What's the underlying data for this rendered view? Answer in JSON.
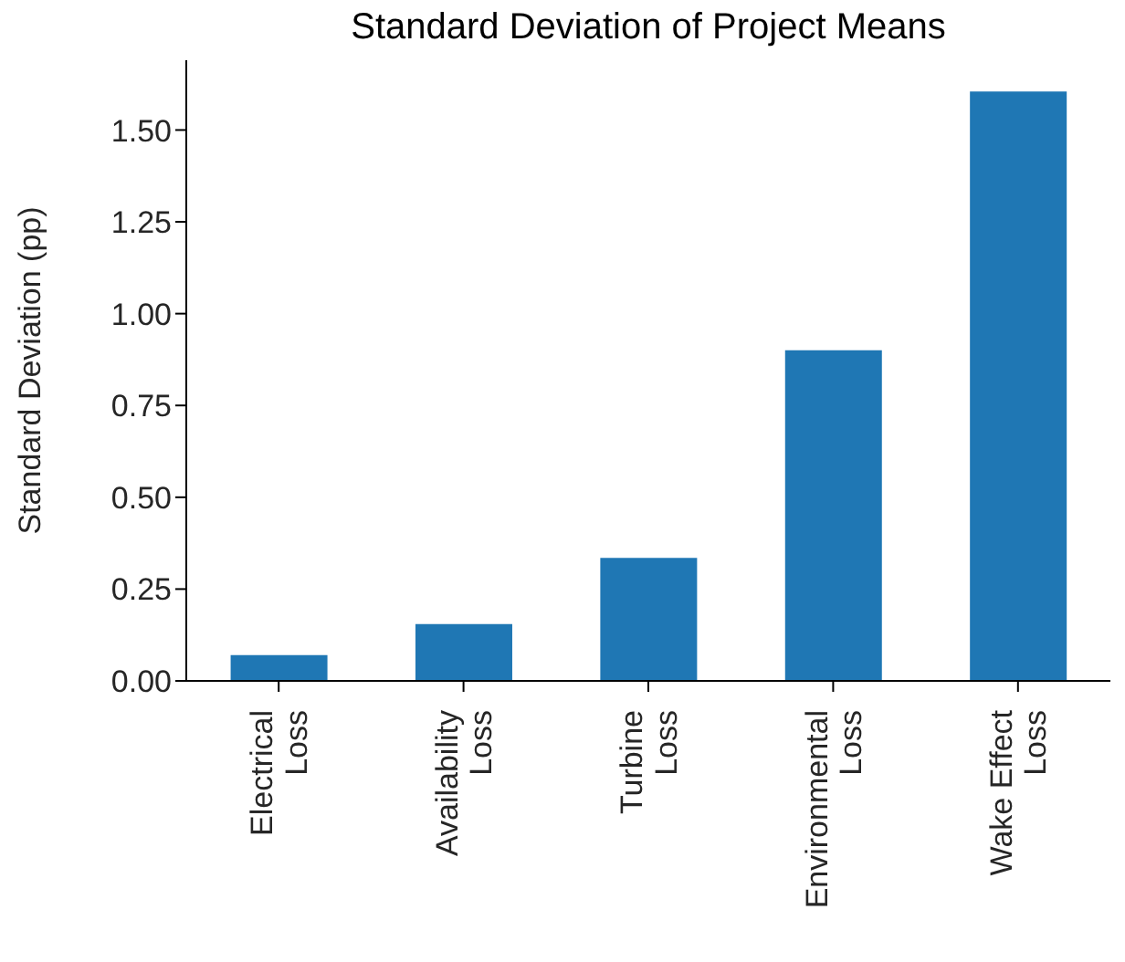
{
  "chart_data": {
    "type": "bar",
    "title": "Standard Deviation of Project Means",
    "ylabel": "Standard Deviation (pp)",
    "categories": [
      "Electrical\nLoss",
      "Availability\nLoss",
      "Turbine\nLoss",
      "Environmental\nLoss",
      "Wake Effect\nLoss"
    ],
    "values": [
      0.07,
      0.155,
      0.335,
      0.9,
      1.605
    ],
    "color": "#1f77b4",
    "ylim": [
      0,
      1.69
    ],
    "yticks": [
      {
        "value": 0,
        "label": "0.00"
      },
      {
        "value": 0.25,
        "label": "0.25"
      },
      {
        "value": 0.5,
        "label": "0.50"
      },
      {
        "value": 0.75,
        "label": "0.75"
      },
      {
        "value": 1,
        "label": "1.00"
      },
      {
        "value": 1.25,
        "label": "1.25"
      },
      {
        "value": 1.5,
        "label": "1.50"
      }
    ],
    "grid": false,
    "legend": false
  }
}
